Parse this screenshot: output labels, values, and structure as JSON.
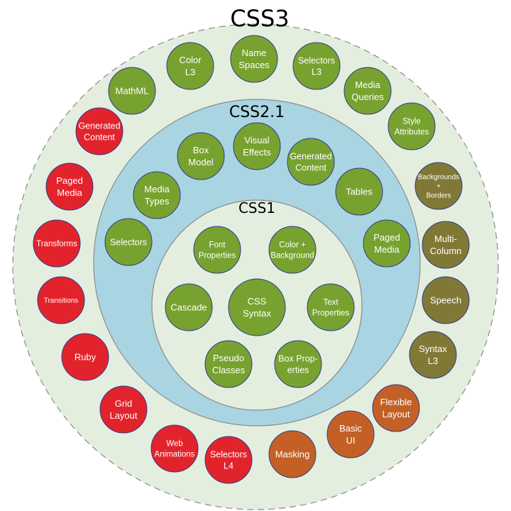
{
  "colors": {
    "outer_ring_fill": "#e4eedf",
    "middle_ring_fill": "#a9d5e2",
    "inner_ring_fill": "#e4eedf",
    "ring_border": "#8a8a8a",
    "bubble_border": "#2f3b8f",
    "css3_green": "#77a22f",
    "css2_green": "#77a22f",
    "css1_green": "#77a22f",
    "red": "#e3232b",
    "olive": "#807936",
    "orange": "#c46026"
  },
  "rings": {
    "css3": {
      "title": "CSS3"
    },
    "css21": {
      "title": "CSS2.1"
    },
    "css1": {
      "title": "CSS1"
    }
  },
  "css3_modules": [
    {
      "label_lines": [
        "Color",
        "L3"
      ],
      "color": "green"
    },
    {
      "label_lines": [
        "Name",
        "Spaces"
      ],
      "color": "green"
    },
    {
      "label_lines": [
        "Selectors",
        "L3"
      ],
      "color": "green"
    },
    {
      "label_lines": [
        "MathML"
      ],
      "color": "green"
    },
    {
      "label_lines": [
        "Media",
        "Queries"
      ],
      "color": "green"
    },
    {
      "label_lines": [
        "Style",
        "Attributes"
      ],
      "color": "green"
    },
    {
      "label_lines": [
        "Backgrounds",
        "+",
        "Borders"
      ],
      "color": "olive"
    },
    {
      "label_lines": [
        "Multi-",
        "Column"
      ],
      "color": "olive"
    },
    {
      "label_lines": [
        "Speech"
      ],
      "color": "olive"
    },
    {
      "label_lines": [
        "Syntax",
        "L3"
      ],
      "color": "olive"
    },
    {
      "label_lines": [
        "Flexible",
        "Layout"
      ],
      "color": "orange"
    },
    {
      "label_lines": [
        "Basic",
        "UI"
      ],
      "color": "orange"
    },
    {
      "label_lines": [
        "Masking"
      ],
      "color": "orange"
    },
    {
      "label_lines": [
        "Selectors",
        "L4"
      ],
      "color": "red"
    },
    {
      "label_lines": [
        "Web",
        "Animations"
      ],
      "color": "red"
    },
    {
      "label_lines": [
        "Grid",
        "Layout"
      ],
      "color": "red"
    },
    {
      "label_lines": [
        "Ruby"
      ],
      "color": "red"
    },
    {
      "label_lines": [
        "Transitions"
      ],
      "color": "red"
    },
    {
      "label_lines": [
        "Transforms"
      ],
      "color": "red"
    },
    {
      "label_lines": [
        "Paged",
        "Media"
      ],
      "color": "red"
    },
    {
      "label_lines": [
        "Generated",
        "Content"
      ],
      "color": "red"
    }
  ],
  "css21_modules": [
    {
      "label_lines": [
        "Box",
        "Model"
      ]
    },
    {
      "label_lines": [
        "Visual",
        "Effects"
      ]
    },
    {
      "label_lines": [
        "Generated",
        "Content"
      ]
    },
    {
      "label_lines": [
        "Tables"
      ]
    },
    {
      "label_lines": [
        "Paged",
        "Media"
      ]
    },
    {
      "label_lines": [
        "Media",
        "Types"
      ]
    },
    {
      "label_lines": [
        "Selectors"
      ]
    }
  ],
  "css1_modules": [
    {
      "label_lines": [
        "Font",
        "Properties"
      ]
    },
    {
      "label_lines": [
        "Color +",
        "Background"
      ]
    },
    {
      "label_lines": [
        "Cascade"
      ]
    },
    {
      "label_lines": [
        "CSS",
        "Syntax"
      ]
    },
    {
      "label_lines": [
        "Text",
        "Properties"
      ]
    },
    {
      "label_lines": [
        "Pseudo",
        "Classes"
      ]
    },
    {
      "label_lines": [
        "Box Prop-",
        "erties"
      ]
    }
  ]
}
